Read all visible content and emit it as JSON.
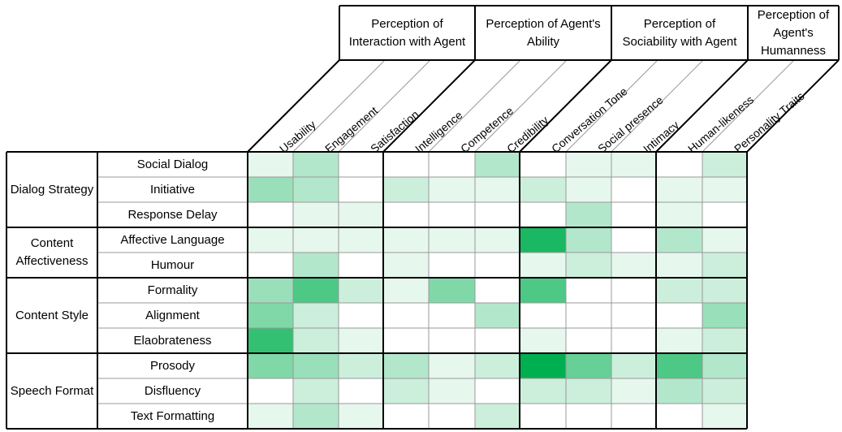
{
  "chart_data": {
    "type": "heatmap",
    "dimensions": [
      {
        "label": "Perception of Interaction with Agent",
        "lines": [
          "Perception of",
          "Interaction with Agent"
        ],
        "columns": [
          "Usability",
          "Engagement",
          "Satisfaction"
        ]
      },
      {
        "label": "Perception of Agent's Ability",
        "lines": [
          "Perception of Agent's",
          "Ability"
        ],
        "columns": [
          "Intelligence",
          "Competence",
          "Credibility"
        ]
      },
      {
        "label": "Perception of Sociability with Agent",
        "lines": [
          "Perception of",
          "Sociability with  Agent"
        ],
        "columns": [
          "Conversation Tone",
          "Social presence",
          "Intimacy"
        ]
      },
      {
        "label": "Perception of Agent's Humanness",
        "lines": [
          "Perception of",
          "Agent's",
          "Humanness"
        ],
        "columns": [
          "Human-likeness",
          "Personality Traits"
        ]
      }
    ],
    "columns": [
      "Usability",
      "Engagement",
      "Satisfaction",
      "Intelligence",
      "Competence",
      "Credibility",
      "Conversation Tone",
      "Social presence",
      "Intimacy",
      "Human-likeness",
      "Personality Traits"
    ],
    "groups": [
      {
        "label": "Dialog Strategy",
        "lines": [
          "Dialog Strategy"
        ],
        "rows": [
          "Social Dialog",
          "Initiative",
          "Response Delay"
        ]
      },
      {
        "label": "Content Affectiveness",
        "lines": [
          "Content",
          "Affectiveness"
        ],
        "rows": [
          "Affective Language",
          "Humour"
        ]
      },
      {
        "label": "Content Style",
        "lines": [
          "Content Style"
        ],
        "rows": [
          "Formality",
          "Alignment",
          "Elaobrateness"
        ]
      },
      {
        "label": "Speech Format",
        "lines": [
          "Speech Format"
        ],
        "rows": [
          "Prosody",
          "Disfluency",
          "Text Formatting"
        ]
      }
    ],
    "rows": [
      "Social Dialog",
      "Initiative",
      "Response Delay",
      "Affective Language",
      "Humour",
      "Formality",
      "Alignment",
      "Elaobrateness",
      "Prosody",
      "Disfluency",
      "Text Formatting"
    ],
    "values": [
      [
        1,
        3,
        0,
        0,
        0,
        3,
        0,
        1,
        1,
        0,
        2
      ],
      [
        4,
        3,
        0,
        2,
        1,
        1,
        2,
        1,
        0,
        1,
        1
      ],
      [
        0,
        1,
        1,
        0,
        0,
        0,
        0,
        3,
        0,
        1,
        0
      ],
      [
        1,
        1,
        1,
        1,
        1,
        1,
        9,
        3,
        0,
        3,
        1
      ],
      [
        0,
        3,
        0,
        1,
        0,
        0,
        1,
        2,
        1,
        1,
        2
      ],
      [
        4,
        7,
        2,
        1,
        5,
        0,
        7,
        0,
        0,
        2,
        2
      ],
      [
        5,
        2,
        0,
        0,
        0,
        3,
        0,
        0,
        0,
        0,
        4
      ],
      [
        8,
        2,
        1,
        0,
        0,
        0,
        1,
        0,
        0,
        1,
        2
      ],
      [
        5,
        4,
        2,
        3,
        1,
        2,
        10,
        6,
        2,
        7,
        3
      ],
      [
        0,
        2,
        0,
        2,
        1,
        0,
        2,
        2,
        1,
        3,
        2
      ],
      [
        1,
        3,
        1,
        0,
        0,
        2,
        0,
        0,
        0,
        0,
        1
      ]
    ],
    "vmin": 0,
    "vmax": 10,
    "color_low": "#ffffff",
    "color_high": "#00b050"
  }
}
